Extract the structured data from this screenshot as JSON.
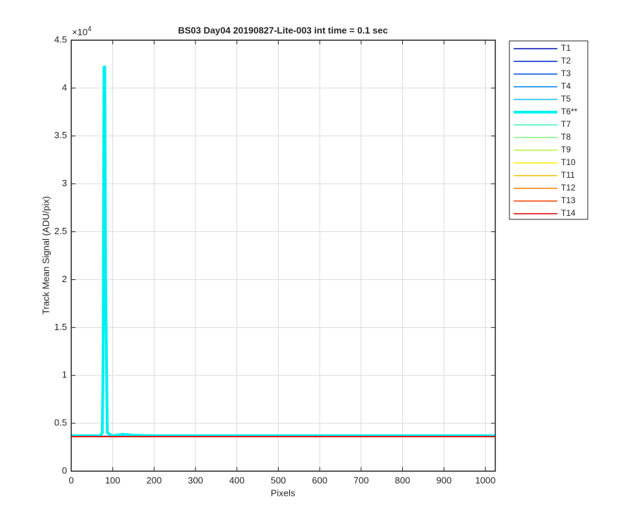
{
  "chart_data": {
    "type": "line",
    "title": "BS03 Day04 20190827-Lite-003 int time = 0.1 sec",
    "xlabel": "Pixels",
    "ylabel": "Track Mean Signal (ADU/pix)",
    "y_multiplier": {
      "base": "×10",
      "exponent": "4"
    },
    "x": [
      0,
      50,
      70,
      75,
      77,
      79,
      81,
      83,
      87,
      100,
      125,
      150,
      200,
      400,
      600,
      800,
      1000,
      1024
    ],
    "xlim": [
      0,
      1024
    ],
    "xticks": [
      0,
      100,
      200,
      300,
      400,
      500,
      600,
      700,
      800,
      900,
      1000
    ],
    "ylim": [
      0,
      4.5
    ],
    "yticks": [
      0,
      0.5,
      1,
      1.5,
      2,
      2.5,
      3,
      3.5,
      4,
      4.5
    ],
    "grid": true,
    "legend_position": "outside-right",
    "series": [
      {
        "name": "T1",
        "color": "#0010b8",
        "line_width": 1.5,
        "values": [
          0.365,
          0.365,
          0.365,
          0.365,
          0.365,
          0.365,
          0.365,
          0.365,
          0.365,
          0.365,
          0.365,
          0.365,
          0.365,
          0.365,
          0.365,
          0.365,
          0.365,
          0.365
        ]
      },
      {
        "name": "T2",
        "color": "#0028d0",
        "line_width": 1.5,
        "values": [
          0.365,
          0.365,
          0.365,
          0.365,
          0.365,
          0.365,
          0.365,
          0.365,
          0.365,
          0.365,
          0.365,
          0.365,
          0.365,
          0.365,
          0.365,
          0.365,
          0.365,
          0.365
        ]
      },
      {
        "name": "T3",
        "color": "#0050e0",
        "line_width": 1.5,
        "values": [
          0.365,
          0.365,
          0.365,
          0.365,
          0.365,
          0.365,
          0.365,
          0.365,
          0.365,
          0.365,
          0.365,
          0.365,
          0.365,
          0.365,
          0.365,
          0.365,
          0.365,
          0.365
        ]
      },
      {
        "name": "T4",
        "color": "#0080f0",
        "line_width": 1.5,
        "values": [
          0.365,
          0.365,
          0.365,
          0.365,
          0.365,
          0.365,
          0.365,
          0.365,
          0.365,
          0.365,
          0.365,
          0.365,
          0.365,
          0.365,
          0.365,
          0.365,
          0.365,
          0.365
        ]
      },
      {
        "name": "T5",
        "color": "#10c0f8",
        "line_width": 1.5,
        "values": [
          0.365,
          0.365,
          0.365,
          0.365,
          0.365,
          0.365,
          0.365,
          0.365,
          0.365,
          0.365,
          0.365,
          0.365,
          0.365,
          0.365,
          0.365,
          0.365,
          0.365,
          0.365
        ]
      },
      {
        "name": "T6**",
        "color": "#00f0f0",
        "line_width": 4,
        "values": [
          0.37,
          0.37,
          0.37,
          0.4,
          1.2,
          4.22,
          4.22,
          2.0,
          0.4,
          0.37,
          0.385,
          0.375,
          0.37,
          0.37,
          0.37,
          0.37,
          0.37,
          0.37
        ]
      },
      {
        "name": "T7",
        "color": "#40f0c0",
        "line_width": 1.5,
        "values": [
          0.36,
          0.36,
          0.36,
          0.36,
          0.36,
          0.36,
          0.36,
          0.36,
          0.36,
          0.36,
          0.36,
          0.36,
          0.36,
          0.36,
          0.36,
          0.36,
          0.36,
          0.36
        ]
      },
      {
        "name": "T8",
        "color": "#80f080",
        "line_width": 1.5,
        "values": [
          0.36,
          0.36,
          0.36,
          0.36,
          0.36,
          0.36,
          0.36,
          0.36,
          0.36,
          0.36,
          0.36,
          0.36,
          0.36,
          0.36,
          0.36,
          0.36,
          0.36,
          0.36
        ]
      },
      {
        "name": "T9",
        "color": "#c0f040",
        "line_width": 1.5,
        "values": [
          0.36,
          0.36,
          0.36,
          0.36,
          0.36,
          0.36,
          0.36,
          0.36,
          0.36,
          0.36,
          0.36,
          0.36,
          0.36,
          0.36,
          0.36,
          0.36,
          0.36,
          0.36
        ]
      },
      {
        "name": "T10",
        "color": "#f8f000",
        "line_width": 1.5,
        "values": [
          0.36,
          0.36,
          0.36,
          0.36,
          0.36,
          0.36,
          0.36,
          0.36,
          0.36,
          0.36,
          0.36,
          0.36,
          0.36,
          0.36,
          0.36,
          0.36,
          0.36,
          0.36
        ]
      },
      {
        "name": "T11",
        "color": "#f0c000",
        "line_width": 1.5,
        "values": [
          0.36,
          0.36,
          0.36,
          0.36,
          0.36,
          0.36,
          0.36,
          0.36,
          0.36,
          0.36,
          0.36,
          0.36,
          0.36,
          0.36,
          0.36,
          0.36,
          0.36,
          0.36
        ]
      },
      {
        "name": "T12",
        "color": "#f88000",
        "line_width": 1.5,
        "values": [
          0.36,
          0.36,
          0.36,
          0.36,
          0.36,
          0.36,
          0.36,
          0.36,
          0.36,
          0.36,
          0.36,
          0.36,
          0.36,
          0.36,
          0.36,
          0.36,
          0.36,
          0.36
        ]
      },
      {
        "name": "T13",
        "color": "#f84000",
        "line_width": 1.5,
        "values": [
          0.36,
          0.36,
          0.36,
          0.36,
          0.36,
          0.36,
          0.36,
          0.36,
          0.36,
          0.36,
          0.36,
          0.36,
          0.36,
          0.36,
          0.36,
          0.36,
          0.36,
          0.36
        ]
      },
      {
        "name": "T14",
        "color": "#e00000",
        "line_width": 1.5,
        "values": [
          0.362,
          0.362,
          0.362,
          0.362,
          0.362,
          0.362,
          0.362,
          0.362,
          0.362,
          0.362,
          0.362,
          0.362,
          0.362,
          0.362,
          0.362,
          0.362,
          0.362,
          0.362
        ]
      }
    ]
  }
}
